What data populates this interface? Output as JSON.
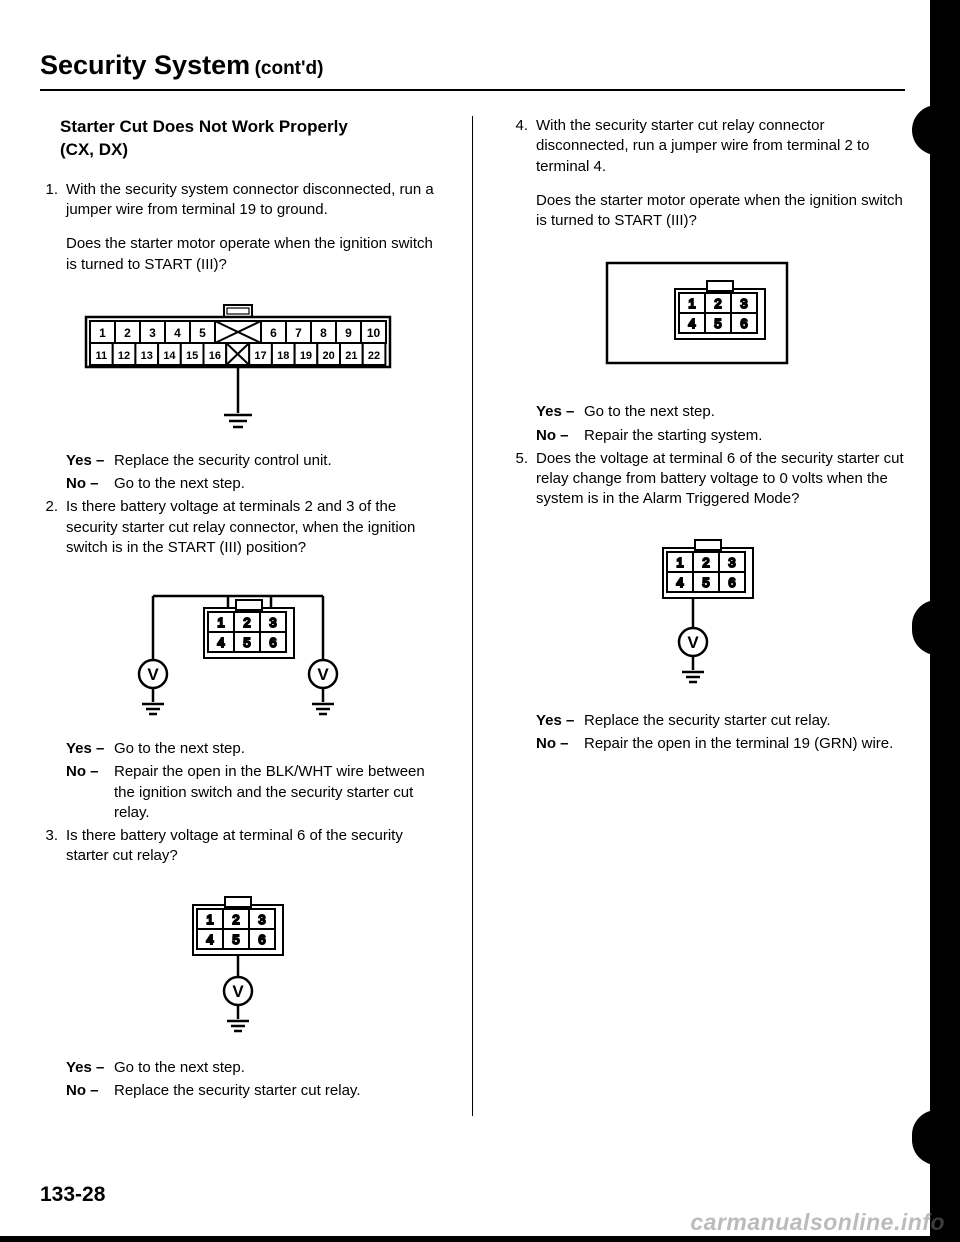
{
  "title_main": "Security System",
  "title_cont": "(cont'd)",
  "page_number": "133-28",
  "watermark": "carmanualsonline.info",
  "left": {
    "subheading_l1": "Starter Cut Does Not Work Properly",
    "subheading_l2": "(CX, DX)",
    "step1": {
      "num": "1.",
      "p1": "With the security system connector disconnected, run a jumper wire from terminal 19 to ground.",
      "p2": "Does the starter motor operate when the ignition switch is turned to START (III)?",
      "yes": "Replace the security control unit.",
      "no": "Go to the next step."
    },
    "step2": {
      "num": "2.",
      "p1": "Is there battery voltage at terminals 2 and 3 of the security starter cut relay connector, when the ignition switch is in the START (III) position?",
      "yes": "Go to the next step.",
      "no": "Repair the open in the BLK/WHT wire between the ignition switch and the security starter cut relay."
    },
    "step3": {
      "num": "3.",
      "p1": "Is there battery voltage at terminal 6 of the security starter cut relay?",
      "yes": "Go to the next step.",
      "no": "Replace the security starter cut relay."
    }
  },
  "right": {
    "step4": {
      "num": "4.",
      "p1": "With the security starter cut relay connector disconnected, run a jumper wire from terminal 2 to terminal 4.",
      "p2": "Does the starter motor operate when the ignition switch is turned to START (III)?",
      "yes": "Go to the next step.",
      "no": "Repair the starting system."
    },
    "step5": {
      "num": "5.",
      "p1": "Does the voltage at terminal 6 of the security starter cut relay change from battery voltage to 0 volts when the system is in the Alarm Triggered Mode?",
      "yes": "Replace the security starter cut relay.",
      "no": "Repair the open in the terminal 19 (GRN) wire."
    }
  },
  "labels": {
    "yes": "Yes –",
    "no": "No –"
  },
  "connector22": {
    "row1": [
      "1",
      "2",
      "3",
      "4",
      "5",
      "6",
      "7",
      "8",
      "9",
      "10"
    ],
    "row2": [
      "11",
      "12",
      "13",
      "14",
      "15",
      "16",
      "17",
      "18",
      "19",
      "20",
      "21",
      "22"
    ]
  },
  "connector6": {
    "row1": [
      "1",
      "2",
      "3"
    ],
    "row2": [
      "4",
      "5",
      "6"
    ]
  }
}
